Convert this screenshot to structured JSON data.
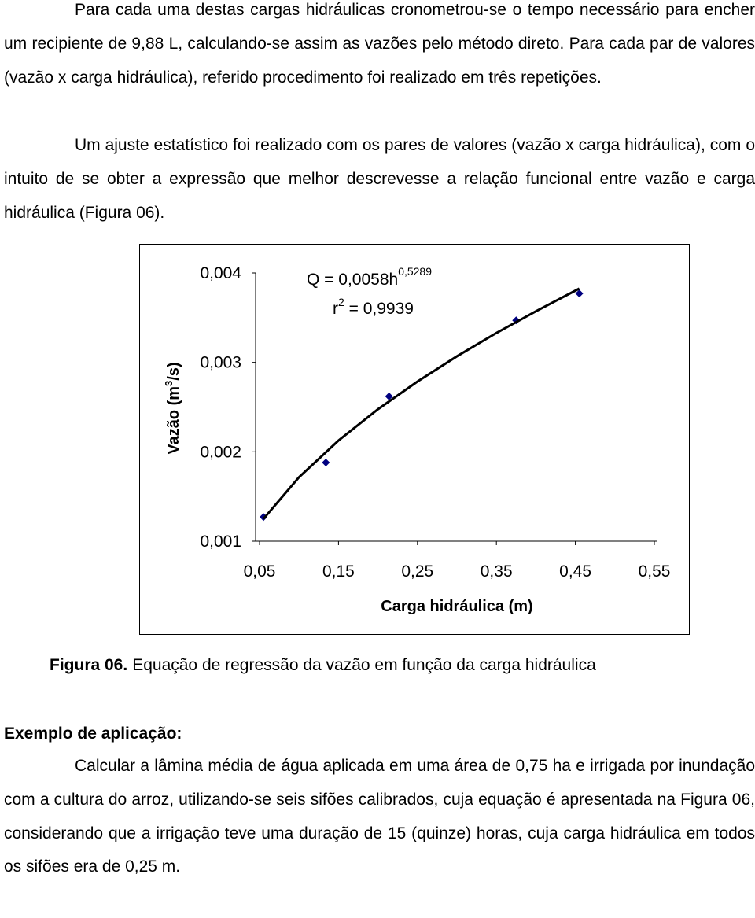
{
  "paragraphs": [
    "Para cada uma destas cargas hidráulicas cronometrou-se o tempo necessário para encher um recipiente de 9,88 L, calculando-se assim as vazões pelo método direto. Para cada par de valores (vazão x carga hidráulica), referido procedimento foi realizado em três repetições.",
    "Um ajuste estatístico foi realizado com os pares de valores (vazão x carga hidráulica), com o intuito de se obter a expressão que melhor descrevesse a relação funcional entre vazão e carga hidráulica (Figura 06)."
  ],
  "chart_data": {
    "type": "scatter",
    "equation": {
      "main": "Q = 0,0058h",
      "exponent": "0,5289"
    },
    "r2": {
      "base": "r",
      "exponent": "2",
      "rest": " = 0,9939"
    },
    "xlabel": "Carga hidráulica (m)",
    "ylabel": {
      "main": "Vazão (m",
      "exponent": "3",
      "rest": "/s)"
    },
    "xlim": [
      0.05,
      0.55
    ],
    "xticks": [
      {
        "value": 0.05,
        "label": "0,05"
      },
      {
        "value": 0.15,
        "label": "0,15"
      },
      {
        "value": 0.25,
        "label": "0,25"
      },
      {
        "value": 0.35,
        "label": "0,35"
      },
      {
        "value": 0.45,
        "label": "0,45"
      },
      {
        "value": 0.55,
        "label": "0,55"
      }
    ],
    "ylim": [
      0.001,
      0.004
    ],
    "yticks": [
      {
        "value": 0.001,
        "label": "0,001"
      },
      {
        "value": 0.002,
        "label": "0,002"
      },
      {
        "value": 0.003,
        "label": "0,003"
      },
      {
        "value": 0.004,
        "label": "0,004"
      }
    ],
    "series": [
      {
        "color": "#000080",
        "marker": "diamond",
        "x": [
          0.055,
          0.134,
          0.214,
          0.375,
          0.455
        ],
        "values": [
          0.00127,
          0.00188,
          0.00262,
          0.00347,
          0.00377
        ]
      },
      {
        "color": "#000000",
        "line": true,
        "x": [
          0.055,
          0.1,
          0.15,
          0.2,
          0.25,
          0.3,
          0.35,
          0.4,
          0.455
        ],
        "values": [
          0.00125,
          0.001716,
          0.002126,
          0.002476,
          0.002786,
          0.003068,
          0.003329,
          0.003572,
          0.003825
        ]
      }
    ]
  },
  "caption": {
    "label": "Figura 06.",
    "text": "Equação de regressão da vazão em função da carga hidráulica"
  },
  "example": {
    "heading": "Exemplo de aplicação:",
    "text": "Calcular a lâmina média de água aplicada em uma área de 0,75 ha e irrigada por inundação com a cultura do arroz, utilizando-se seis sifões calibrados, cuja equação é apresentada na Figura 06, considerando que a irrigação teve uma duração de 15 (quinze) horas, cuja carga hidráulica em todos os sifões era de 0,25 m."
  }
}
